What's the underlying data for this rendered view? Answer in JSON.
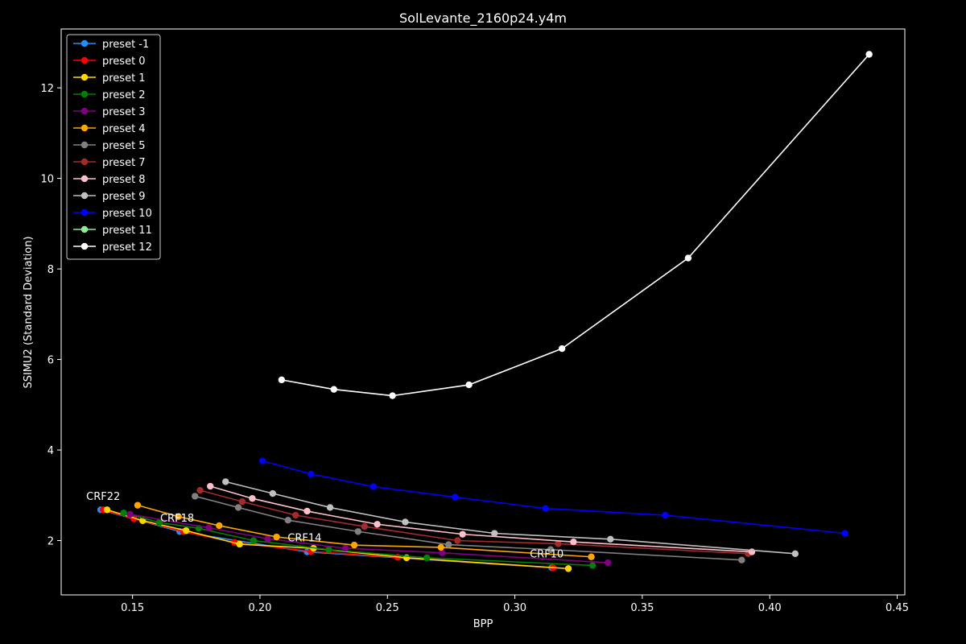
{
  "chart_data": {
    "type": "line",
    "title": "SolLevante_2160p24.y4m",
    "xlabel": "BPP",
    "ylabel": "SSIMU2 (Standard Deviation)",
    "xlim": [
      0.122,
      0.453
    ],
    "ylim": [
      0.8,
      13.3
    ],
    "xticks": [
      "0.15",
      "0.20",
      "0.25",
      "0.30",
      "0.35",
      "0.40",
      "0.45"
    ],
    "xtick_values": [
      0.15,
      0.2,
      0.25,
      0.3,
      0.35,
      0.4,
      0.45
    ],
    "yticks": [
      "2",
      "4",
      "6",
      "8",
      "10",
      "12"
    ],
    "ytick_values": [
      2,
      4,
      6,
      8,
      10,
      12
    ],
    "grid": false,
    "legend_position": "top-left",
    "annotations": [
      {
        "text": "CRF22",
        "x": 0.1385,
        "y": 2.9
      },
      {
        "text": "CRF18",
        "x": 0.1675,
        "y": 2.42
      },
      {
        "text": "CRF14",
        "x": 0.2175,
        "y": 1.98
      },
      {
        "text": "CRF10",
        "x": 0.3125,
        "y": 1.63
      }
    ],
    "series": [
      {
        "name": "preset -1",
        "color": "#1f8fff",
        "x": [
          0.1375,
          0.1685,
          0.2185,
          0.3145
        ],
        "y": [
          2.68,
          2.2,
          1.75,
          1.4
        ]
      },
      {
        "name": "preset 0",
        "color": "#ff0000",
        "x": [
          0.1385,
          0.1505,
          0.17,
          0.19,
          0.22,
          0.254,
          0.315
        ],
        "y": [
          2.68,
          2.48,
          2.2,
          1.96,
          1.76,
          1.63,
          1.4
        ]
      },
      {
        "name": "preset 1",
        "color": "#ffd700",
        "x": [
          0.14,
          0.154,
          0.171,
          0.192,
          0.221,
          0.2575,
          0.321
        ],
        "y": [
          2.68,
          2.44,
          2.22,
          1.92,
          1.83,
          1.62,
          1.38
        ]
      },
      {
        "name": "preset 2",
        "color": "#008000",
        "x": [
          0.1465,
          0.1605,
          0.176,
          0.1975,
          0.227,
          0.2655,
          0.3305
        ],
        "y": [
          2.61,
          2.4,
          2.27,
          2.0,
          1.8,
          1.62,
          1.45
        ]
      },
      {
        "name": "preset 3",
        "color": "#800080",
        "x": [
          0.149,
          0.18,
          0.203,
          0.2335,
          0.2715,
          0.3365
        ],
        "y": [
          2.58,
          2.28,
          2.04,
          1.83,
          1.73,
          1.51
        ]
      },
      {
        "name": "preset 4",
        "color": "#ffa500",
        "x": [
          0.152,
          0.168,
          0.184,
          0.2065,
          0.237,
          0.271,
          0.33
        ],
        "y": [
          2.78,
          2.53,
          2.33,
          2.08,
          1.9,
          1.85,
          1.64
        ]
      },
      {
        "name": "preset 5",
        "color": "#808080",
        "x": [
          0.1745,
          0.1915,
          0.211,
          0.2385,
          0.274,
          0.314,
          0.389
        ],
        "y": [
          2.98,
          2.73,
          2.45,
          2.2,
          1.91,
          1.8,
          1.57
        ]
      },
      {
        "name": "preset 7",
        "color": "#a52a2a",
        "x": [
          0.1765,
          0.193,
          0.214,
          0.241,
          0.2775,
          0.317,
          0.3915
        ],
        "y": [
          3.11,
          2.86,
          2.56,
          2.31,
          2.0,
          1.93,
          1.71
        ]
      },
      {
        "name": "preset 8",
        "color": "#ffc0cb",
        "x": [
          0.1805,
          0.197,
          0.2185,
          0.246,
          0.2795,
          0.323,
          0.393
        ],
        "y": [
          3.2,
          2.93,
          2.65,
          2.36,
          2.14,
          1.97,
          1.75
        ]
      },
      {
        "name": "preset 9",
        "color": "#c0c0c0",
        "x": [
          0.1865,
          0.205,
          0.2275,
          0.257,
          0.292,
          0.3375,
          0.41
        ],
        "y": [
          3.3,
          3.04,
          2.73,
          2.41,
          2.16,
          2.03,
          1.71
        ]
      },
      {
        "name": "preset 10",
        "color": "#0000ff",
        "x": [
          0.201,
          0.22,
          0.2445,
          0.2765,
          0.312,
          0.359,
          0.4295
        ],
        "y": [
          3.76,
          3.47,
          3.19,
          2.96,
          2.71,
          2.56,
          2.16
        ]
      },
      {
        "name": "preset 11",
        "color": "#90ee90",
        "x": [],
        "y": []
      },
      {
        "name": "preset 12",
        "color": "#ffffff",
        "x": [
          0.2085,
          0.229,
          0.252,
          0.282,
          0.3185,
          0.368,
          0.439
        ],
        "y": [
          5.55,
          5.34,
          5.2,
          5.44,
          6.24,
          8.24,
          12.74
        ]
      }
    ]
  }
}
